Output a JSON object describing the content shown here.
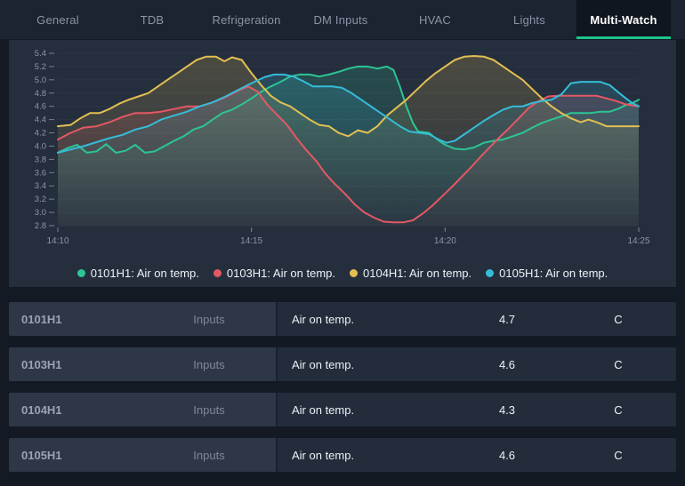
{
  "tabs": {
    "items": [
      {
        "label": "General",
        "active": false
      },
      {
        "label": "TDB",
        "active": false
      },
      {
        "label": "Refrigeration",
        "active": false
      },
      {
        "label": "DM Inputs",
        "active": false
      },
      {
        "label": "HVAC",
        "active": false
      },
      {
        "label": "Lights",
        "active": false
      },
      {
        "label": "Multi-Watch",
        "active": true
      }
    ]
  },
  "colors": {
    "page_bg": "#131a24",
    "tabbar_bg": "#1b2430",
    "active_tab_bg": "#10161f",
    "active_tab_underline": "#1dc489",
    "panel_bg": "#252e3d",
    "gridline": "#2c3646",
    "axis_text": "#8d96a7",
    "tick_mark": "#77818f",
    "series_green": "#2cc594",
    "series_red": "#e45865",
    "series_yellow": "#e3bf52",
    "series_cyan": "#36bcd9"
  },
  "chart_data": {
    "type": "line",
    "title": "",
    "xlabel": "",
    "ylabel": "",
    "ylim": [
      2.8,
      5.4
    ],
    "ytick_step": 0.2,
    "ytick_labels": [
      "2.8",
      "3.0",
      "3.2",
      "3.4",
      "3.6",
      "3.8",
      "4.0",
      "4.2",
      "4.4",
      "4.6",
      "4.8",
      "5.0",
      "5.2",
      "5.4"
    ],
    "x_range_seconds": [
      0,
      900
    ],
    "x_ticks": [
      {
        "t": 0,
        "label": "14:10"
      },
      {
        "t": 300,
        "label": "14:15"
      },
      {
        "t": 600,
        "label": "14:20"
      },
      {
        "t": 900,
        "label": "14:25"
      }
    ],
    "grid": true,
    "legend_position": "bottom",
    "series": [
      {
        "name": "0101H1: Air on temp.",
        "color": "#2cc594",
        "points": [
          [
            0,
            3.9
          ],
          [
            15,
            3.97
          ],
          [
            30,
            4.02
          ],
          [
            45,
            3.9
          ],
          [
            60,
            3.92
          ],
          [
            75,
            4.03
          ],
          [
            90,
            3.9
          ],
          [
            105,
            3.93
          ],
          [
            120,
            4.02
          ],
          [
            135,
            3.9
          ],
          [
            150,
            3.92
          ],
          [
            165,
            4.0
          ],
          [
            180,
            4.08
          ],
          [
            195,
            4.15
          ],
          [
            210,
            4.25
          ],
          [
            225,
            4.3
          ],
          [
            240,
            4.4
          ],
          [
            255,
            4.5
          ],
          [
            270,
            4.55
          ],
          [
            285,
            4.63
          ],
          [
            300,
            4.72
          ],
          [
            315,
            4.82
          ],
          [
            330,
            4.9
          ],
          [
            345,
            4.97
          ],
          [
            360,
            5.05
          ],
          [
            375,
            5.08
          ],
          [
            390,
            5.08
          ],
          [
            405,
            5.05
          ],
          [
            420,
            5.08
          ],
          [
            435,
            5.12
          ],
          [
            450,
            5.17
          ],
          [
            465,
            5.2
          ],
          [
            480,
            5.2
          ],
          [
            495,
            5.17
          ],
          [
            510,
            5.2
          ],
          [
            520,
            5.15
          ],
          [
            530,
            4.9
          ],
          [
            540,
            4.6
          ],
          [
            550,
            4.35
          ],
          [
            558,
            4.22
          ],
          [
            575,
            4.2
          ],
          [
            588,
            4.1
          ],
          [
            600,
            4.02
          ],
          [
            615,
            3.96
          ],
          [
            630,
            3.95
          ],
          [
            645,
            3.98
          ],
          [
            660,
            4.05
          ],
          [
            675,
            4.08
          ],
          [
            690,
            4.1
          ],
          [
            705,
            4.15
          ],
          [
            720,
            4.2
          ],
          [
            735,
            4.28
          ],
          [
            750,
            4.35
          ],
          [
            765,
            4.4
          ],
          [
            780,
            4.45
          ],
          [
            795,
            4.5
          ],
          [
            810,
            4.5
          ],
          [
            825,
            4.5
          ],
          [
            840,
            4.52
          ],
          [
            855,
            4.52
          ],
          [
            870,
            4.57
          ],
          [
            880,
            4.62
          ],
          [
            890,
            4.65
          ],
          [
            900,
            4.7
          ]
        ]
      },
      {
        "name": "0103H1: Air on temp.",
        "color": "#e45865",
        "points": [
          [
            0,
            4.1
          ],
          [
            20,
            4.2
          ],
          [
            40,
            4.28
          ],
          [
            60,
            4.3
          ],
          [
            80,
            4.36
          ],
          [
            100,
            4.44
          ],
          [
            120,
            4.5
          ],
          [
            140,
            4.5
          ],
          [
            160,
            4.52
          ],
          [
            180,
            4.56
          ],
          [
            200,
            4.6
          ],
          [
            220,
            4.6
          ],
          [
            240,
            4.66
          ],
          [
            260,
            4.74
          ],
          [
            280,
            4.84
          ],
          [
            295,
            4.9
          ],
          [
            310,
            4.82
          ],
          [
            325,
            4.62
          ],
          [
            340,
            4.47
          ],
          [
            355,
            4.32
          ],
          [
            370,
            4.12
          ],
          [
            385,
            3.94
          ],
          [
            400,
            3.78
          ],
          [
            415,
            3.58
          ],
          [
            430,
            3.42
          ],
          [
            445,
            3.28
          ],
          [
            460,
            3.12
          ],
          [
            475,
            3.0
          ],
          [
            490,
            2.92
          ],
          [
            505,
            2.86
          ],
          [
            520,
            2.85
          ],
          [
            535,
            2.85
          ],
          [
            550,
            2.88
          ],
          [
            565,
            2.98
          ],
          [
            580,
            3.1
          ],
          [
            595,
            3.24
          ],
          [
            610,
            3.38
          ],
          [
            625,
            3.53
          ],
          [
            640,
            3.68
          ],
          [
            655,
            3.84
          ],
          [
            670,
            3.99
          ],
          [
            685,
            4.14
          ],
          [
            700,
            4.28
          ],
          [
            715,
            4.43
          ],
          [
            730,
            4.58
          ],
          [
            745,
            4.68
          ],
          [
            760,
            4.75
          ],
          [
            775,
            4.76
          ],
          [
            790,
            4.76
          ],
          [
            805,
            4.76
          ],
          [
            820,
            4.76
          ],
          [
            835,
            4.76
          ],
          [
            850,
            4.72
          ],
          [
            865,
            4.68
          ],
          [
            880,
            4.63
          ],
          [
            900,
            4.6
          ]
        ]
      },
      {
        "name": "0104H1: Air on temp.",
        "color": "#e3bf52",
        "points": [
          [
            0,
            4.3
          ],
          [
            20,
            4.32
          ],
          [
            35,
            4.42
          ],
          [
            50,
            4.5
          ],
          [
            65,
            4.5
          ],
          [
            80,
            4.56
          ],
          [
            95,
            4.64
          ],
          [
            110,
            4.7
          ],
          [
            125,
            4.75
          ],
          [
            140,
            4.8
          ],
          [
            155,
            4.9
          ],
          [
            170,
            5.0
          ],
          [
            185,
            5.1
          ],
          [
            200,
            5.2
          ],
          [
            215,
            5.3
          ],
          [
            230,
            5.35
          ],
          [
            245,
            5.35
          ],
          [
            258,
            5.28
          ],
          [
            270,
            5.34
          ],
          [
            285,
            5.3
          ],
          [
            300,
            5.1
          ],
          [
            315,
            4.92
          ],
          [
            330,
            4.76
          ],
          [
            345,
            4.66
          ],
          [
            360,
            4.6
          ],
          [
            375,
            4.5
          ],
          [
            390,
            4.4
          ],
          [
            405,
            4.32
          ],
          [
            420,
            4.3
          ],
          [
            435,
            4.2
          ],
          [
            450,
            4.15
          ],
          [
            465,
            4.24
          ],
          [
            480,
            4.2
          ],
          [
            495,
            4.3
          ],
          [
            510,
            4.46
          ],
          [
            525,
            4.58
          ],
          [
            540,
            4.7
          ],
          [
            555,
            4.84
          ],
          [
            570,
            4.98
          ],
          [
            585,
            5.1
          ],
          [
            600,
            5.2
          ],
          [
            615,
            5.3
          ],
          [
            630,
            5.35
          ],
          [
            645,
            5.36
          ],
          [
            660,
            5.35
          ],
          [
            675,
            5.3
          ],
          [
            690,
            5.2
          ],
          [
            705,
            5.1
          ],
          [
            720,
            5.0
          ],
          [
            735,
            4.86
          ],
          [
            750,
            4.72
          ],
          [
            765,
            4.6
          ],
          [
            780,
            4.5
          ],
          [
            795,
            4.42
          ],
          [
            810,
            4.36
          ],
          [
            822,
            4.4
          ],
          [
            835,
            4.36
          ],
          [
            850,
            4.3
          ],
          [
            865,
            4.3
          ],
          [
            880,
            4.3
          ],
          [
            900,
            4.3
          ]
        ]
      },
      {
        "name": "0105H1: Air on temp.",
        "color": "#36bcd9",
        "points": [
          [
            0,
            3.9
          ],
          [
            20,
            3.95
          ],
          [
            40,
            4.0
          ],
          [
            60,
            4.06
          ],
          [
            80,
            4.12
          ],
          [
            100,
            4.17
          ],
          [
            120,
            4.25
          ],
          [
            140,
            4.3
          ],
          [
            160,
            4.4
          ],
          [
            180,
            4.46
          ],
          [
            200,
            4.52
          ],
          [
            220,
            4.6
          ],
          [
            240,
            4.66
          ],
          [
            260,
            4.75
          ],
          [
            280,
            4.85
          ],
          [
            300,
            4.95
          ],
          [
            320,
            5.04
          ],
          [
            335,
            5.08
          ],
          [
            350,
            5.08
          ],
          [
            365,
            5.05
          ],
          [
            380,
            4.98
          ],
          [
            395,
            4.9
          ],
          [
            410,
            4.9
          ],
          [
            425,
            4.9
          ],
          [
            440,
            4.88
          ],
          [
            455,
            4.8
          ],
          [
            470,
            4.7
          ],
          [
            485,
            4.6
          ],
          [
            500,
            4.5
          ],
          [
            515,
            4.4
          ],
          [
            530,
            4.3
          ],
          [
            545,
            4.22
          ],
          [
            560,
            4.2
          ],
          [
            575,
            4.18
          ],
          [
            590,
            4.1
          ],
          [
            602,
            4.05
          ],
          [
            615,
            4.08
          ],
          [
            630,
            4.18
          ],
          [
            645,
            4.28
          ],
          [
            660,
            4.38
          ],
          [
            675,
            4.47
          ],
          [
            690,
            4.55
          ],
          [
            705,
            4.6
          ],
          [
            720,
            4.6
          ],
          [
            735,
            4.65
          ],
          [
            750,
            4.68
          ],
          [
            765,
            4.7
          ],
          [
            780,
            4.78
          ],
          [
            795,
            4.95
          ],
          [
            810,
            4.97
          ],
          [
            825,
            4.97
          ],
          [
            840,
            4.97
          ],
          [
            855,
            4.92
          ],
          [
            870,
            4.8
          ],
          [
            880,
            4.72
          ],
          [
            890,
            4.65
          ],
          [
            900,
            4.6
          ]
        ]
      }
    ]
  },
  "legend": {
    "items": [
      {
        "label": "0101H1: Air on temp.",
        "color": "#2cc594"
      },
      {
        "label": "0103H1: Air on temp.",
        "color": "#e45865"
      },
      {
        "label": "0104H1: Air on temp.",
        "color": "#e3bf52"
      },
      {
        "label": "0105H1: Air on temp.",
        "color": "#36bcd9"
      }
    ]
  },
  "table": {
    "rows": [
      {
        "device": "0101H1",
        "source": "Inputs",
        "parameter": "Air on temp.",
        "value": "4.7",
        "unit": "C"
      },
      {
        "device": "0103H1",
        "source": "Inputs",
        "parameter": "Air on temp.",
        "value": "4.6",
        "unit": "C"
      },
      {
        "device": "0104H1",
        "source": "Inputs",
        "parameter": "Air on temp.",
        "value": "4.3",
        "unit": "C"
      },
      {
        "device": "0105H1",
        "source": "Inputs",
        "parameter": "Air on temp.",
        "value": "4.6",
        "unit": "C"
      }
    ]
  }
}
